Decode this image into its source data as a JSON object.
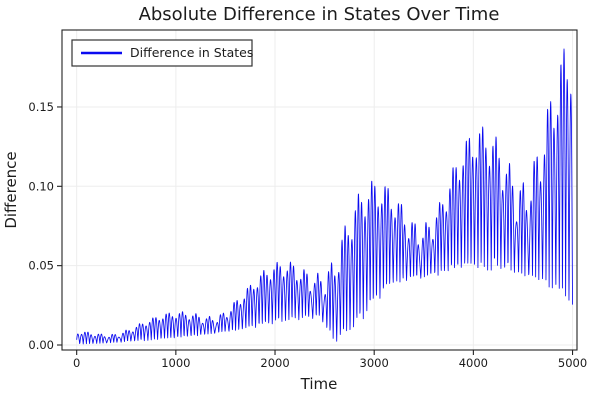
{
  "title": "Absolute Difference in States Over Time",
  "legend": {
    "label": "Difference in States"
  },
  "axes": {
    "x_label": "Time",
    "y_label": "Difference"
  },
  "colors": {
    "series_blue": "#0b0bf0",
    "grid": "#ededed",
    "frame": "#222222",
    "text": "#1c1c1c",
    "legend_border": "#333333"
  },
  "chart_data": {
    "type": "line",
    "title": "Absolute Difference in States Over Time",
    "xlabel": "Time",
    "ylabel": "Difference",
    "xlim": [
      -148,
      5045
    ],
    "ylim": [
      -0.00315,
      0.1985
    ],
    "x_ticks": [
      0,
      1000,
      2000,
      3000,
      4000,
      5000
    ],
    "x_tick_labels": [
      "0",
      "1000",
      "2000",
      "3000",
      "4000",
      "5000"
    ],
    "y_ticks": [
      0,
      0.05,
      0.1,
      0.15
    ],
    "y_tick_labels": [
      "0.00",
      "0.05",
      "0.10",
      "0.15"
    ],
    "grid": true,
    "legend_position": "top-left",
    "series": [
      {
        "name": "Difference in States",
        "color": "#0b0bf0",
        "style": "dense oscillation between slowly varying envelopes",
        "signal": {
          "description": "High-frequency oscillation (period ~34 time units) of |difference of two oscillator states|; bounded below by lower envelope and above by upper envelope; envelopes pinch to ~0 near t=2600, local hump ~0.111 near t=3400, slight saddle ~0.107 near t=3650, rises to max ~0.194 at t=5000",
          "t_range": [
            0,
            5000
          ],
          "sample_step": 2,
          "carrier_periods": [
            68,
            63.8,
            45.5
          ],
          "carrier_phases": [
            0,
            0.9,
            2.0
          ],
          "carrier_weights": [
            0.62,
            0.26,
            0.12
          ],
          "amplitude_scale": 1.04,
          "envelope_t": [
            0,
            250,
            500,
            750,
            1000,
            1250,
            1500,
            1750,
            2000,
            2250,
            2450,
            2600,
            2800,
            3000,
            3200,
            3400,
            3650,
            3900,
            4150,
            4400,
            4650,
            4800,
            5000
          ],
          "upper": [
            0.009,
            0.011,
            0.014,
            0.017,
            0.021,
            0.026,
            0.032,
            0.04,
            0.051,
            0.064,
            0.075,
            0.083,
            0.094,
            0.102,
            0.108,
            0.111,
            0.107,
            0.126,
            0.142,
            0.158,
            0.172,
            0.181,
            0.194
          ],
          "lower": [
            0.0005,
            0.001,
            0.002,
            0.003,
            0.004,
            0.006,
            0.008,
            0.01,
            0.013,
            0.016,
            0.017,
            0.001,
            0.009,
            0.024,
            0.038,
            0.041,
            0.044,
            0.046,
            0.047,
            0.045,
            0.041,
            0.035,
            0.022
          ]
        }
      }
    ]
  }
}
